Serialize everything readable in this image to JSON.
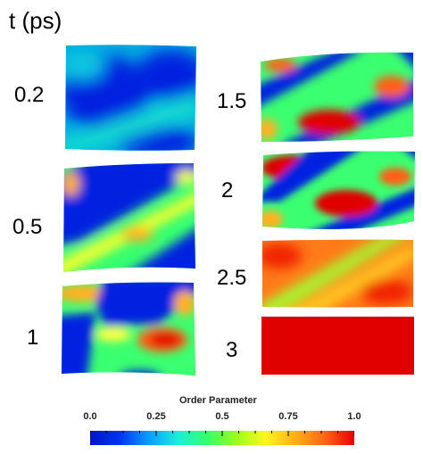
{
  "axis_title": "t (ps)",
  "time_labels": [
    "0.2",
    "0.5",
    "1",
    "1.5",
    "2",
    "2.5",
    "3"
  ],
  "colorbar": {
    "title": "Order Parameter",
    "ticks": [
      "0.0",
      "0.25",
      "0.5",
      "0.75",
      "1.0"
    ],
    "range": [
      0,
      1
    ],
    "colors": [
      "#0015c8",
      "#0033f0",
      "#0a9dff",
      "#19f0d8",
      "#34ff6a",
      "#9dff19",
      "#fff51e",
      "#ffae14",
      "#ff6418",
      "#e80000"
    ]
  }
}
